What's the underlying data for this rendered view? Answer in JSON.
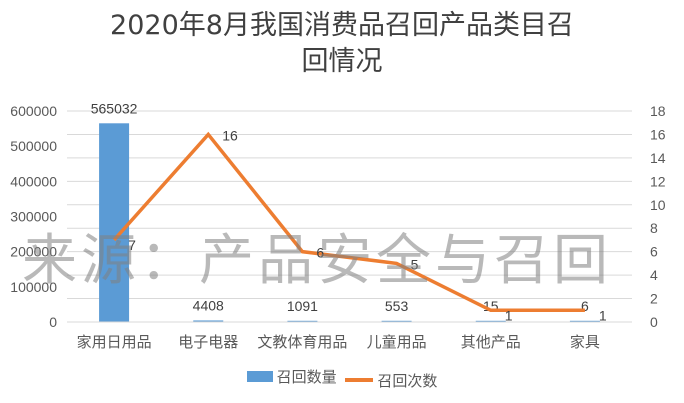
{
  "title_line1": "2020年8月我国消费品召回产品类目召",
  "title_line2": "回情况",
  "watermark": "来源：产品安全与召回",
  "legend": {
    "bar_label": "召回数量",
    "line_label": "召回次数"
  },
  "colors": {
    "bar": "#5b9bd5",
    "line": "#ed7d31",
    "grid": "#d9d9d9"
  },
  "chart_data": {
    "type": "bar",
    "title": "2020年8月我国消费品召回产品类目召回情况",
    "categories": [
      "家用日用品",
      "电子电器",
      "文教体育用品",
      "儿童用品",
      "其他产品",
      "家具"
    ],
    "series": [
      {
        "name": "召回数量",
        "type": "bar",
        "axis": "left",
        "values": [
          565032,
          4408,
          1091,
          553,
          15,
          6
        ]
      },
      {
        "name": "召回次数",
        "type": "line",
        "axis": "right",
        "values": [
          7,
          16,
          6,
          5,
          1,
          1
        ]
      }
    ],
    "y_left": {
      "min": 0,
      "max": 600000,
      "ticks": [
        0,
        100000,
        200000,
        300000,
        400000,
        500000,
        600000
      ]
    },
    "y_right": {
      "min": 0,
      "max": 18,
      "ticks": [
        0,
        2,
        4,
        6,
        8,
        10,
        12,
        14,
        16,
        18
      ]
    },
    "grid": true,
    "legend_position": "bottom",
    "xlabel": "",
    "ylabel": ""
  }
}
